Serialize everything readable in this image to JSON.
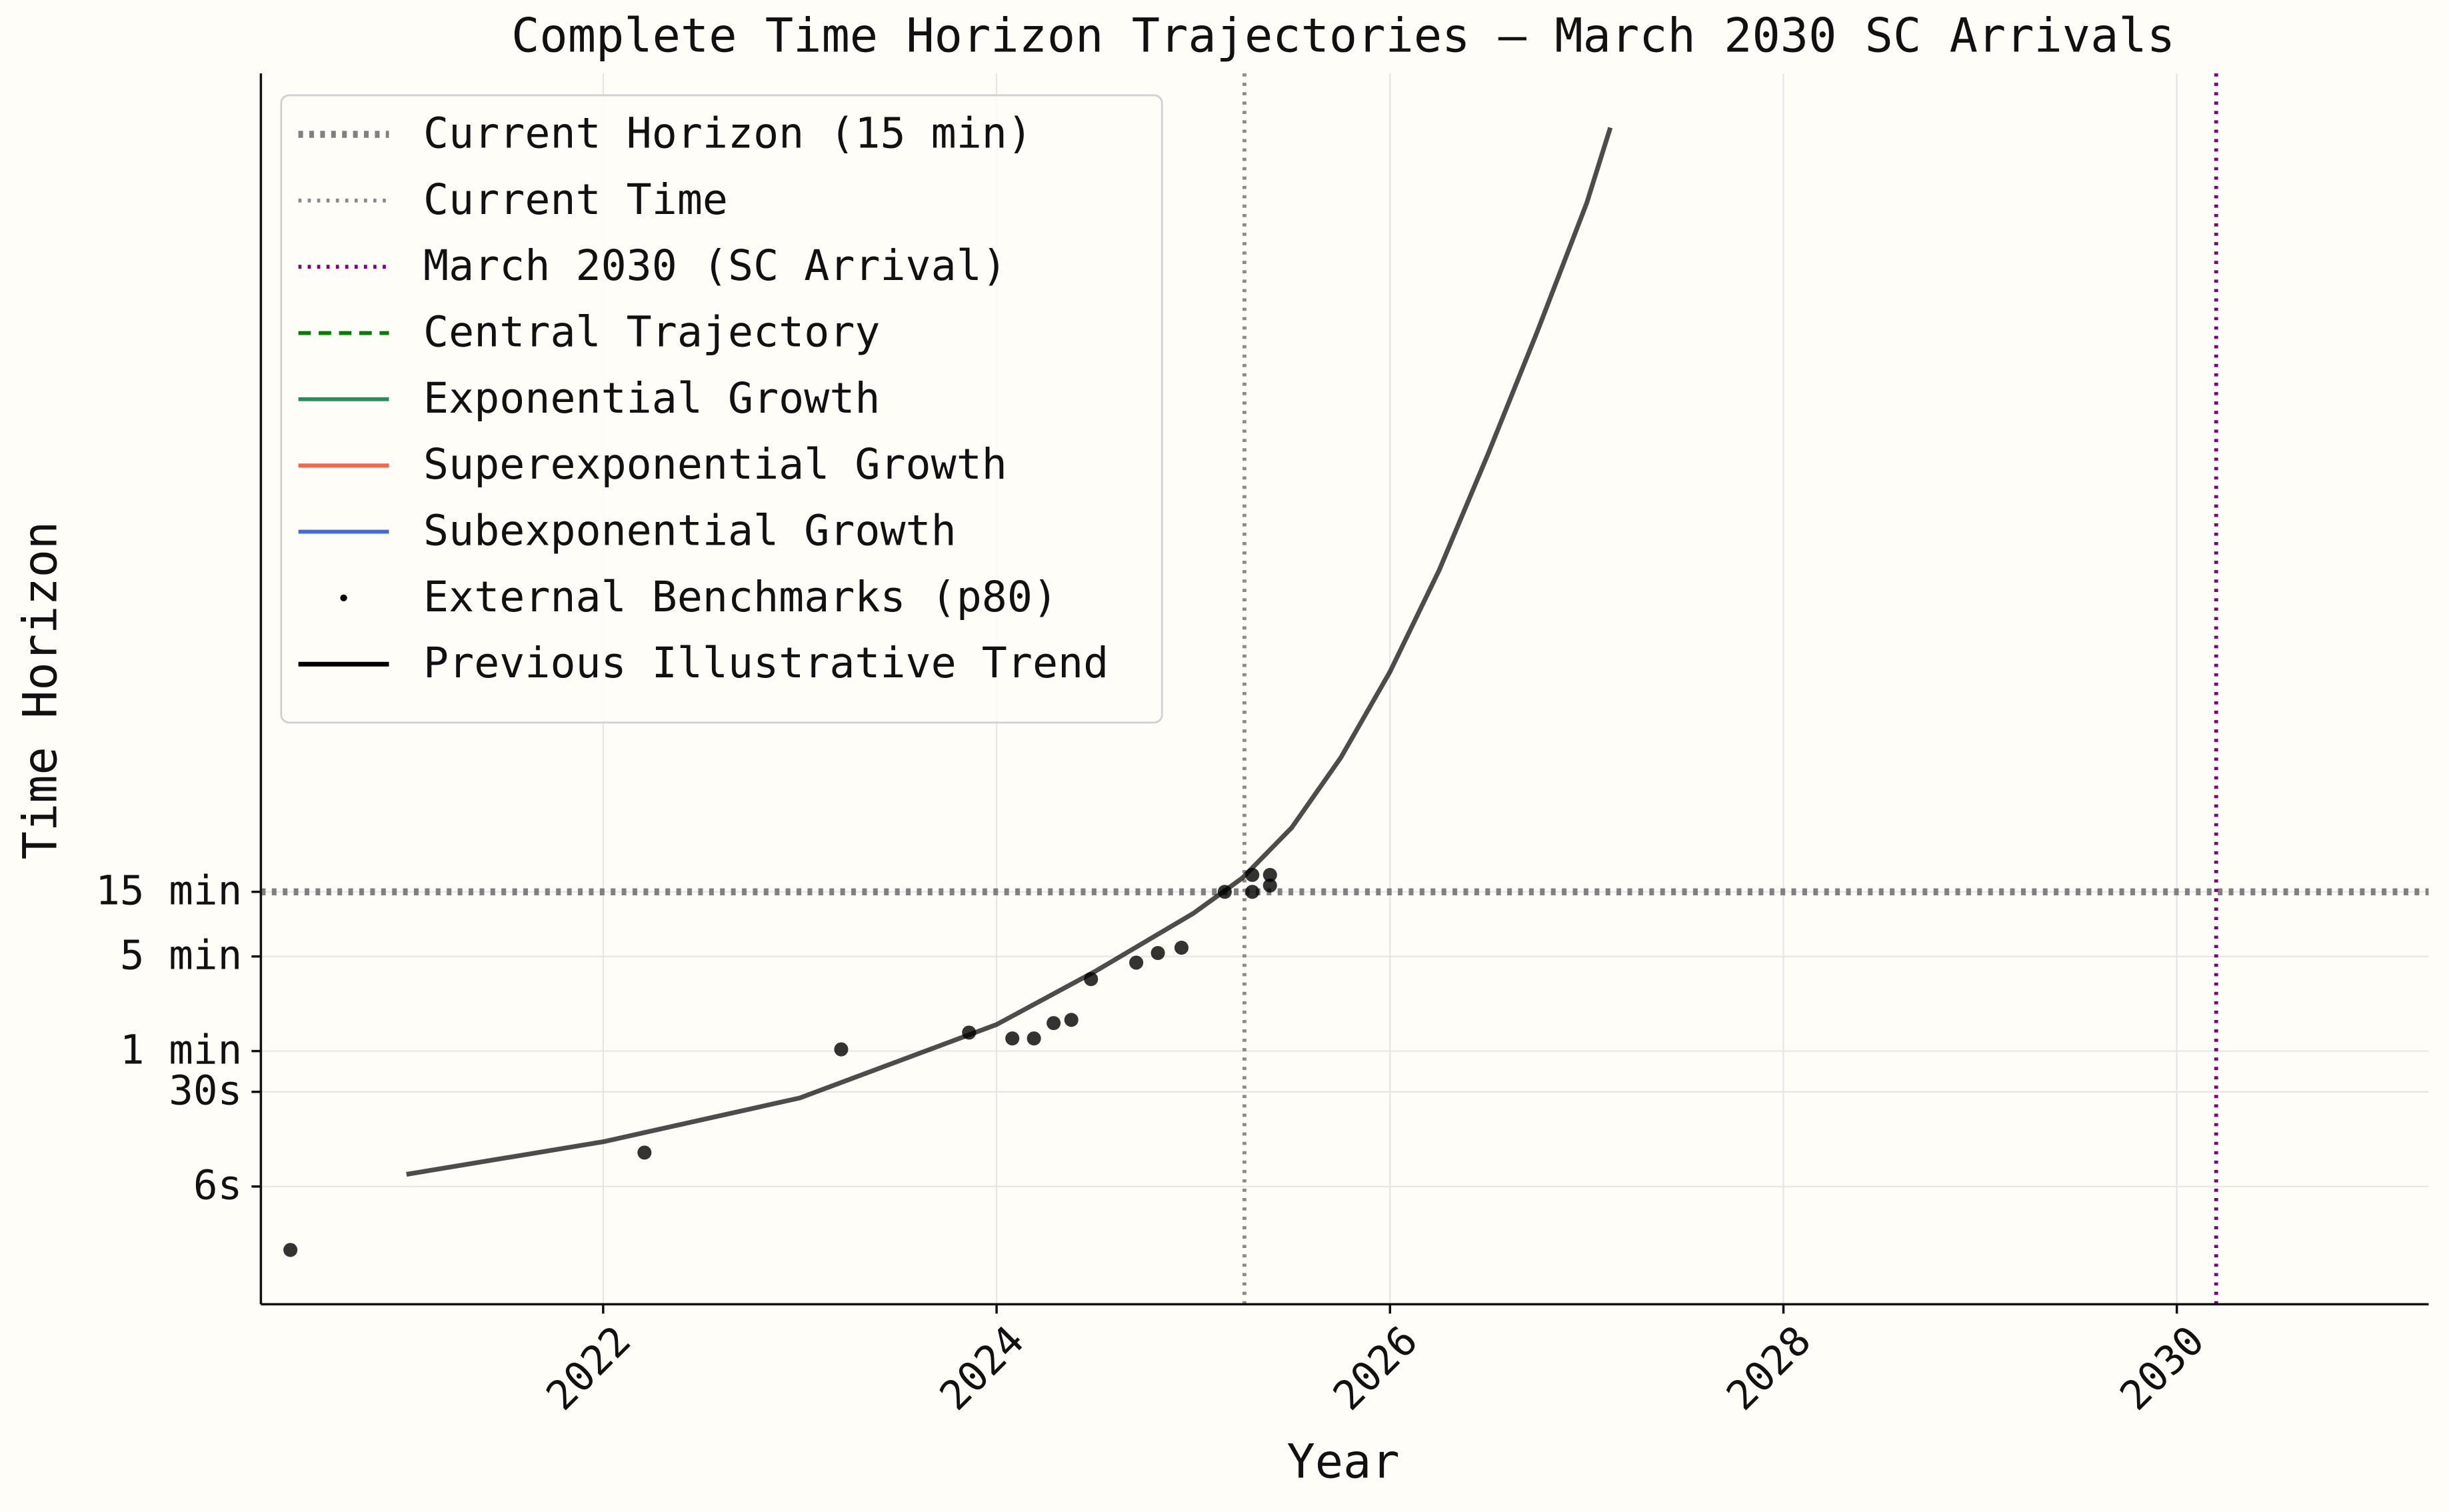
{
  "chart_data": {
    "type": "line",
    "title": "Complete Time Horizon Trajectories – March 2030 SC Arrivals",
    "xlabel": "Year",
    "ylabel": "Time Horizon",
    "xlim": [
      2020.26,
      2031.28
    ],
    "ylim": [
      0.0135,
      16600000
    ],
    "log_y": true,
    "grid": true,
    "legend_loc": "upper left",
    "xticks": [
      2022,
      2024,
      2026,
      2028,
      2030
    ],
    "yticks": [
      {
        "value": 0.1,
        "label": "6s"
      },
      {
        "value": 0.5,
        "label": "30s"
      },
      {
        "value": 1,
        "label": "1 min"
      },
      {
        "value": 5,
        "label": "5 min"
      },
      {
        "value": 15,
        "label": "15 min"
      }
    ],
    "reference_lines": [
      {
        "name": "Current Horizon (15 min)",
        "orientation": "horizontal",
        "value": 15,
        "color": "#808080",
        "style": "dotted-thick"
      },
      {
        "name": "Current Time",
        "orientation": "vertical",
        "value": 2025.26,
        "color": "#8a8a8a",
        "style": "dotted"
      },
      {
        "name": "March 2030 (SC Arrival)",
        "orientation": "vertical",
        "value": 2030.2,
        "color": "#800080",
        "style": "dotted"
      }
    ],
    "legend_only": [
      {
        "name": "Central Trajectory",
        "color": "#008000",
        "style": "dashed"
      },
      {
        "name": "Exponential Growth",
        "color": "#2e8b57",
        "style": "solid"
      },
      {
        "name": "Superexponential Growth",
        "color": "#ff6347",
        "style": "solid"
      },
      {
        "name": "Subexponential Growth",
        "color": "#4169e1",
        "style": "solid"
      }
    ],
    "series": [
      {
        "name": "External Benchmarks (p80)",
        "type": "scatter",
        "color": "#000000",
        "x": [
          2020.41,
          2022.21,
          2023.21,
          2023.86,
          2024.08,
          2024.19,
          2024.29,
          2024.38,
          2024.48,
          2024.71,
          2024.82,
          2024.94,
          2025.16,
          2025.3,
          2025.3,
          2025.39,
          2025.39
        ],
        "values": [
          0.034,
          0.178,
          1.03,
          1.37,
          1.24,
          1.24,
          1.61,
          1.7,
          3.4,
          4.5,
          5.3,
          5.8,
          15,
          20,
          15,
          20,
          16.7
        ]
      },
      {
        "name": "Previous Illustrative Trend",
        "type": "line",
        "color": "#000000",
        "x": [
          2021.0,
          2022.0,
          2023.0,
          2024.0,
          2024.5,
          2025.0,
          2025.25,
          2025.5,
          2025.75,
          2026.0,
          2026.25,
          2026.5,
          2026.75,
          2027.0,
          2027.12
        ],
        "values": [
          0.123,
          0.214,
          0.451,
          1.57,
          3.87,
          10.4,
          19,
          44.6,
          147,
          633,
          3560,
          26000,
          208000,
          1830000,
          6600000
        ]
      }
    ]
  }
}
